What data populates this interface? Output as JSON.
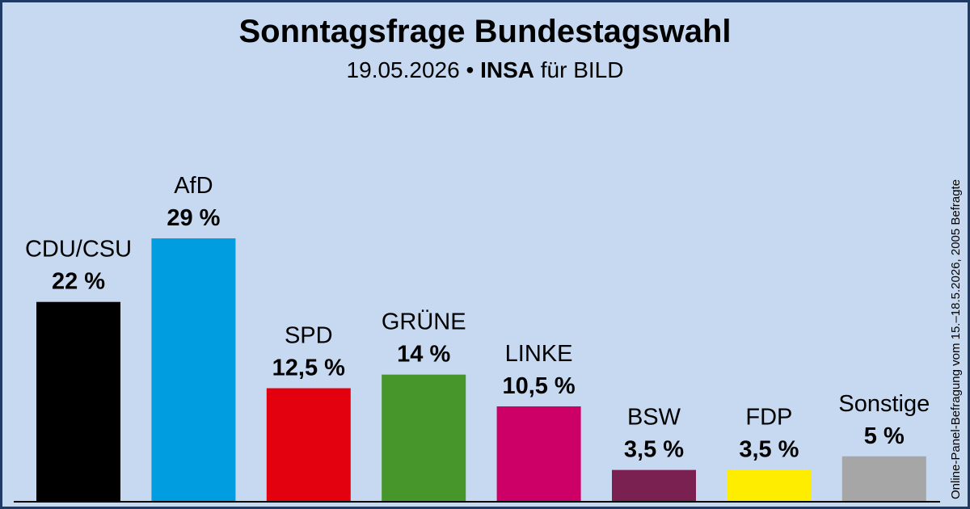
{
  "header": {
    "title": "Sonntagsfrage Bundestagswahl",
    "date": "19.05.2026",
    "bullet": "•",
    "institute": "INSA",
    "client": "für BILD"
  },
  "side_note": "Online-Panel-Befragung vom 15.–18.5.2026, 2005 Befragte",
  "chart_data": {
    "type": "bar",
    "title": "Sonntagsfrage Bundestagswahl",
    "categories": [
      "CDU/CSU",
      "AfD",
      "SPD",
      "GRÜNE",
      "LINKE",
      "BSW",
      "FDP",
      "Sonstige"
    ],
    "values": [
      22,
      29,
      12.5,
      14,
      10.5,
      3.5,
      3.5,
      5
    ],
    "value_labels": [
      "22 %",
      "29 %",
      "12,5 %",
      "14 %",
      "10,5 %",
      "3,5 %",
      "3,5 %",
      "5 %"
    ],
    "colors": [
      "#000000",
      "#009ee0",
      "#e3000f",
      "#46962b",
      "#cc0066",
      "#7b2151",
      "#ffed00",
      "#a6a6a6"
    ],
    "unit": "%",
    "grid": false,
    "legend": "none"
  }
}
